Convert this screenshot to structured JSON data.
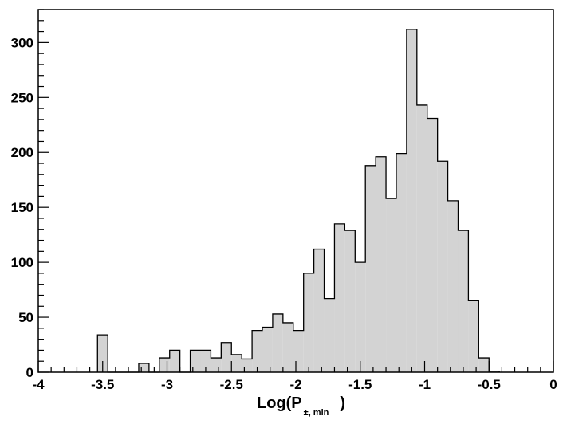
{
  "chart_data": {
    "type": "bar",
    "title": "",
    "xlabel": "Log(P",
    "xlabel_sub": "±, min",
    "xlabel_close": ")",
    "ylabel": "",
    "xlim": [
      -4,
      0
    ],
    "ylim": [
      0,
      330
    ],
    "x_ticks": [
      -4,
      -3.5,
      -3,
      -2.5,
      -2,
      -1.5,
      -1,
      -0.5,
      0
    ],
    "x_tick_labels": [
      "-4",
      "-3.5",
      "-3",
      "-2.5",
      "-2",
      "-1.5",
      "-1",
      "-0.5",
      "0"
    ],
    "y_ticks": [
      0,
      50,
      100,
      150,
      200,
      250,
      300
    ],
    "y_tick_labels": [
      "0",
      "50",
      "100",
      "150",
      "200",
      "250",
      "300"
    ],
    "bin_width": 0.08,
    "bins": [
      {
        "x0": -3.54,
        "value": 34
      },
      {
        "x0": -3.46,
        "value": 0
      },
      {
        "x0": -3.38,
        "value": 0
      },
      {
        "x0": -3.3,
        "value": 0
      },
      {
        "x0": -3.22,
        "value": 8
      },
      {
        "x0": -3.14,
        "value": 0
      },
      {
        "x0": -3.06,
        "value": 13
      },
      {
        "x0": -2.98,
        "value": 20
      },
      {
        "x0": -2.9,
        "value": 0
      },
      {
        "x0": -2.82,
        "value": 20
      },
      {
        "x0": -2.74,
        "value": 20
      },
      {
        "x0": -2.66,
        "value": 13
      },
      {
        "x0": -2.58,
        "value": 27
      },
      {
        "x0": -2.5,
        "value": 16
      },
      {
        "x0": -2.42,
        "value": 12
      },
      {
        "x0": -2.34,
        "value": 38
      },
      {
        "x0": -2.26,
        "value": 41
      },
      {
        "x0": -2.18,
        "value": 53
      },
      {
        "x0": -2.1,
        "value": 45
      },
      {
        "x0": -2.02,
        "value": 38
      },
      {
        "x0": -1.94,
        "value": 90
      },
      {
        "x0": -1.86,
        "value": 112
      },
      {
        "x0": -1.78,
        "value": 67
      },
      {
        "x0": -1.7,
        "value": 135
      },
      {
        "x0": -1.62,
        "value": 129
      },
      {
        "x0": -1.54,
        "value": 100
      },
      {
        "x0": -1.46,
        "value": 188
      },
      {
        "x0": -1.38,
        "value": 196
      },
      {
        "x0": -1.3,
        "value": 158
      },
      {
        "x0": -1.22,
        "value": 199
      },
      {
        "x0": -1.14,
        "value": 312
      },
      {
        "x0": -1.06,
        "value": 243
      },
      {
        "x0": -0.98,
        "value": 231
      },
      {
        "x0": -0.9,
        "value": 192
      },
      {
        "x0": -0.82,
        "value": 156
      },
      {
        "x0": -0.74,
        "value": 129
      },
      {
        "x0": -0.66,
        "value": 65
      },
      {
        "x0": -0.58,
        "value": 13
      },
      {
        "x0": -0.5,
        "value": 1
      }
    ],
    "colors": {
      "fill": "#d3d3d3",
      "stroke": "#000000",
      "background": "#ffffff"
    },
    "grid": false,
    "legend": "none"
  }
}
